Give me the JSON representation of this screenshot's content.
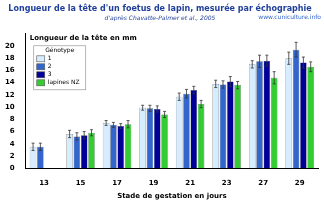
{
  "chart_data": {
    "type": "bar",
    "title": "Longueur de la tête d'un foetus de lapin, mesurée par échographie",
    "subtitle": "d'après Chavatte-Palmer et al., 2005",
    "annotation": "www.cuniculture.info",
    "y_label": "Longueur de la tête en mm",
    "x_label": "Stade de gestation en jours",
    "categories": [
      "13",
      "15",
      "17",
      "19",
      "21",
      "23",
      "27",
      "29"
    ],
    "legend_title": "Génotype",
    "legend": "upper left",
    "grid": false,
    "ylim": [
      0,
      22
    ],
    "yticks": [
      0,
      2,
      4,
      6,
      8,
      10,
      12,
      14,
      16,
      18,
      20
    ],
    "series": [
      {
        "name": "1",
        "color": "#d6ecff",
        "values": [
          3.5,
          5.6,
          7.4,
          9.9,
          11.7,
          13.8,
          17.0,
          18.0
        ],
        "errors": [
          0.6,
          0.6,
          0.4,
          0.4,
          0.6,
          0.6,
          0.6,
          1.0
        ]
      },
      {
        "name": "2",
        "color": "#3366cc",
        "values": [
          3.5,
          5.2,
          7.1,
          9.8,
          12.2,
          13.7,
          17.5,
          19.4
        ],
        "errors": [
          0.6,
          0.6,
          0.4,
          0.5,
          0.7,
          0.6,
          1.0,
          1.2
        ]
      },
      {
        "name": "3",
        "color": "#000099",
        "values": [
          null,
          5.4,
          6.9,
          9.7,
          12.8,
          14.2,
          17.6,
          17.3
        ],
        "errors": [
          null,
          0.6,
          0.4,
          0.5,
          0.6,
          0.8,
          0.9,
          0.9
        ]
      },
      {
        "name": "lapines NZ",
        "color": "#33cc33",
        "values": [
          null,
          5.8,
          7.2,
          8.8,
          10.5,
          13.6,
          14.8,
          16.6
        ],
        "errors": [
          null,
          0.5,
          0.6,
          0.5,
          0.6,
          0.6,
          1.0,
          0.8
        ]
      }
    ]
  }
}
